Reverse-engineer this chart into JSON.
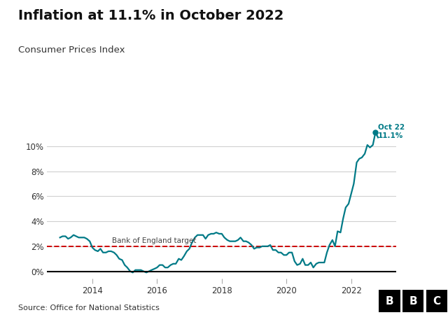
{
  "title": "Inflation at 11.1% in October 2022",
  "subtitle": "Consumer Prices Index",
  "source": "Source: Office for National Statistics",
  "line_color": "#007a87",
  "target_color": "#cc0000",
  "target_value": 2.0,
  "target_label": "Bank of England target",
  "annotation_label_line1": "Oct 22",
  "annotation_label_line2": "11.1%",
  "ylim": [
    -0.6,
    12.5
  ],
  "yticks": [
    0,
    2,
    4,
    6,
    8,
    10
  ],
  "ytick_labels": [
    "0%",
    "2%",
    "4%",
    "6%",
    "8%",
    "10%"
  ],
  "xticks": [
    2014,
    2016,
    2018,
    2020,
    2022
  ],
  "xlim": [
    2012.6,
    2023.4
  ],
  "background_color": "#ffffff",
  "grid_color": "#d0d0d0",
  "data": {
    "dates": [
      2013.0,
      2013.08,
      2013.17,
      2013.25,
      2013.33,
      2013.42,
      2013.5,
      2013.58,
      2013.67,
      2013.75,
      2013.83,
      2013.92,
      2014.0,
      2014.08,
      2014.17,
      2014.25,
      2014.33,
      2014.42,
      2014.5,
      2014.58,
      2014.67,
      2014.75,
      2014.83,
      2014.92,
      2015.0,
      2015.08,
      2015.17,
      2015.25,
      2015.33,
      2015.42,
      2015.5,
      2015.58,
      2015.67,
      2015.75,
      2015.83,
      2015.92,
      2016.0,
      2016.08,
      2016.17,
      2016.25,
      2016.33,
      2016.42,
      2016.5,
      2016.58,
      2016.67,
      2016.75,
      2016.83,
      2016.92,
      2017.0,
      2017.08,
      2017.17,
      2017.25,
      2017.33,
      2017.42,
      2017.5,
      2017.58,
      2017.67,
      2017.75,
      2017.83,
      2017.92,
      2018.0,
      2018.08,
      2018.17,
      2018.25,
      2018.33,
      2018.42,
      2018.5,
      2018.58,
      2018.67,
      2018.75,
      2018.83,
      2018.92,
      2019.0,
      2019.08,
      2019.17,
      2019.25,
      2019.33,
      2019.42,
      2019.5,
      2019.58,
      2019.67,
      2019.75,
      2019.83,
      2019.92,
      2020.0,
      2020.08,
      2020.17,
      2020.25,
      2020.33,
      2020.42,
      2020.5,
      2020.58,
      2020.67,
      2020.75,
      2020.83,
      2020.92,
      2021.0,
      2021.08,
      2021.17,
      2021.25,
      2021.33,
      2021.42,
      2021.5,
      2021.58,
      2021.67,
      2021.75,
      2021.83,
      2021.92,
      2022.0,
      2022.08,
      2022.17,
      2022.25,
      2022.33,
      2022.42,
      2022.5,
      2022.58,
      2022.67,
      2022.75,
      2022.83
    ],
    "values": [
      2.7,
      2.8,
      2.8,
      2.6,
      2.7,
      2.9,
      2.8,
      2.7,
      2.7,
      2.7,
      2.6,
      2.4,
      1.9,
      1.7,
      1.6,
      1.8,
      1.5,
      1.5,
      1.6,
      1.6,
      1.5,
      1.3,
      1.0,
      0.9,
      0.5,
      0.3,
      0.0,
      -0.1,
      0.1,
      0.1,
      0.1,
      0.0,
      -0.1,
      0.0,
      0.1,
      0.2,
      0.3,
      0.5,
      0.5,
      0.3,
      0.3,
      0.5,
      0.6,
      0.6,
      1.0,
      0.9,
      1.2,
      1.6,
      1.8,
      2.3,
      2.7,
      2.9,
      2.9,
      2.9,
      2.6,
      2.9,
      3.0,
      3.0,
      3.1,
      3.0,
      3.0,
      2.7,
      2.5,
      2.4,
      2.4,
      2.4,
      2.5,
      2.7,
      2.4,
      2.4,
      2.3,
      2.1,
      1.8,
      1.9,
      1.9,
      2.0,
      2.0,
      2.0,
      2.1,
      1.7,
      1.7,
      1.5,
      1.5,
      1.3,
      1.3,
      1.5,
      1.5,
      0.8,
      0.5,
      0.6,
      1.0,
      0.5,
      0.5,
      0.7,
      0.3,
      0.6,
      0.7,
      0.7,
      0.7,
      1.5,
      2.1,
      2.5,
      2.0,
      3.2,
      3.1,
      4.2,
      5.1,
      5.4,
      6.2,
      7.0,
      8.7,
      9.0,
      9.1,
      9.4,
      10.1,
      9.9,
      10.1,
      11.1,
      10.7
    ]
  }
}
